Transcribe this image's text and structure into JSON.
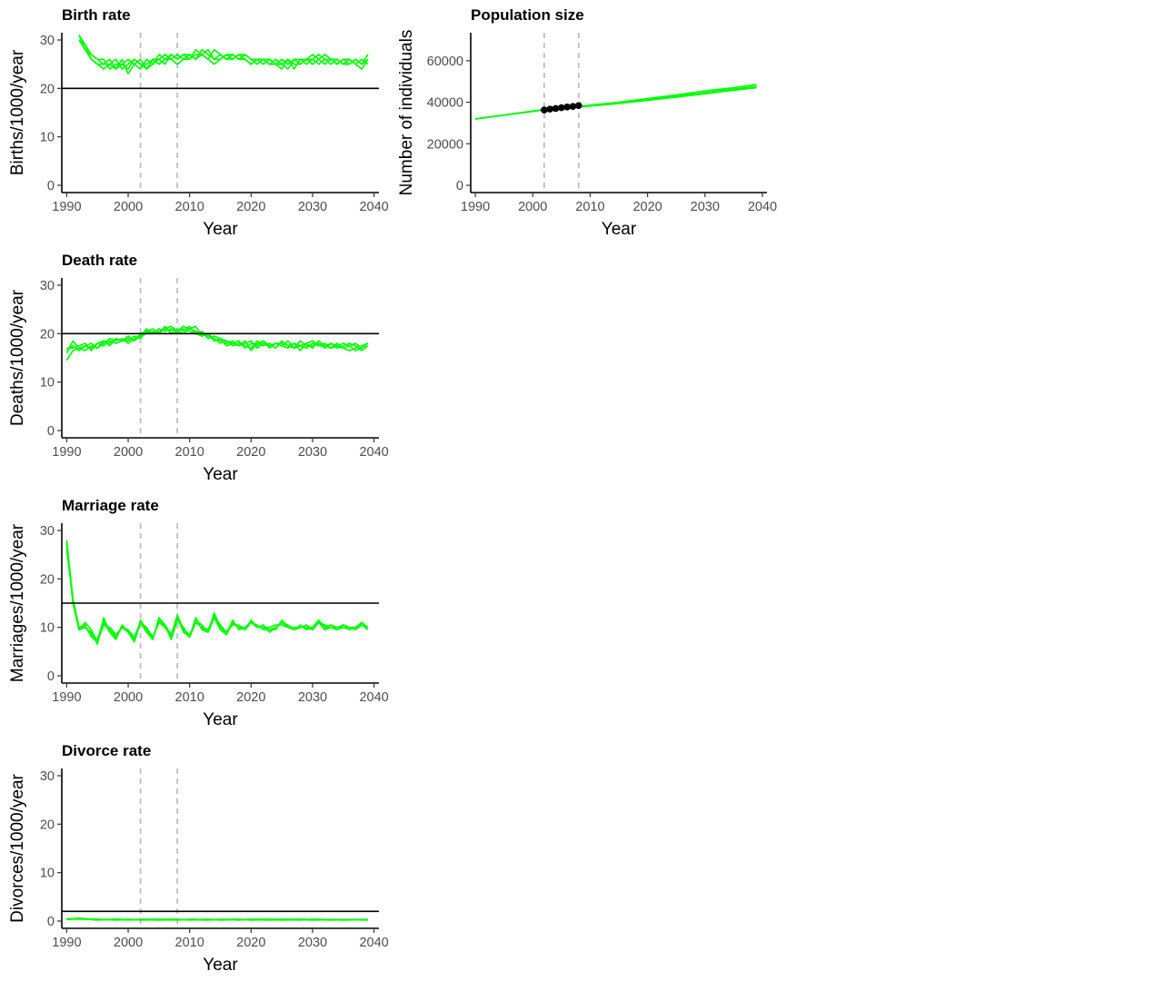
{
  "colors": {
    "series": "#00ff00",
    "reference": "#000000",
    "vline": "#bebebe",
    "points": "#000000"
  },
  "chart_data": [
    {
      "id": "birth",
      "type": "line",
      "title": "Birth rate",
      "xlabel": "Year",
      "ylabel": "Births/1000/year",
      "xlim": [
        1989.2,
        2040.8
      ],
      "ylim": [
        -1.5,
        31.5
      ],
      "xticks": [
        1990,
        2000,
        2010,
        2020,
        2030,
        2040
      ],
      "yticks": [
        0,
        10,
        20,
        30
      ],
      "hline": 20,
      "vlines": [
        2002,
        2008
      ],
      "x": [
        1992,
        1993,
        1994,
        1995,
        1996,
        1997,
        1998,
        1999,
        2000,
        2001,
        2002,
        2003,
        2004,
        2005,
        2006,
        2007,
        2008,
        2009,
        2010,
        2011,
        2012,
        2013,
        2014,
        2015,
        2016,
        2017,
        2018,
        2019,
        2020,
        2021,
        2022,
        2023,
        2024,
        2025,
        2026,
        2027,
        2028,
        2029,
        2030,
        2031,
        2032,
        2033,
        2034,
        2035,
        2036,
        2037,
        2038,
        2039
      ],
      "series": [
        {
          "values": [
            31,
            29,
            27,
            26,
            25,
            26,
            24,
            25,
            24,
            26,
            25,
            24,
            26,
            25,
            26,
            27,
            26,
            27,
            26,
            27,
            27,
            28,
            26,
            26,
            27,
            26,
            27,
            26,
            25,
            26,
            26,
            25,
            25,
            26,
            25,
            26,
            26,
            25,
            26,
            25,
            26,
            26,
            25,
            26,
            25,
            26,
            25,
            26
          ]
        },
        {
          "values": [
            31,
            28,
            27,
            26,
            26,
            24,
            25,
            25,
            26,
            25,
            24,
            26,
            25,
            27,
            26,
            26,
            27,
            26,
            27,
            26,
            28,
            27,
            26,
            27,
            26,
            27,
            26,
            27,
            26,
            25,
            26,
            26,
            25,
            24,
            26,
            25,
            25,
            26,
            26,
            27,
            26,
            25,
            26,
            25,
            26,
            25,
            26,
            25
          ]
        },
        {
          "values": [
            31,
            29,
            26,
            25,
            24,
            25,
            26,
            24,
            25,
            26,
            25,
            25,
            26,
            26,
            27,
            26,
            25,
            26,
            26,
            28,
            27,
            26,
            28,
            27,
            26,
            26,
            27,
            27,
            26,
            26,
            25,
            26,
            25,
            25,
            24,
            26,
            25,
            26,
            25,
            26,
            27,
            26,
            25,
            26,
            26,
            25,
            24,
            26
          ]
        },
        {
          "values": [
            30,
            28,
            26,
            25,
            25,
            25,
            24,
            26,
            23,
            25,
            26,
            24,
            25,
            26,
            25,
            27,
            26,
            27,
            27,
            26,
            27,
            26,
            25,
            26,
            27,
            27,
            26,
            26,
            25,
            26,
            26,
            25,
            26,
            25,
            26,
            24,
            26,
            26,
            27,
            26,
            25,
            26,
            26,
            25,
            25,
            26,
            25,
            27
          ]
        }
      ]
    },
    {
      "id": "population",
      "type": "line",
      "title": "Population size",
      "xlabel": "Year",
      "ylabel": "Number of individuals",
      "xlim": [
        1989.2,
        2040.8
      ],
      "ylim": [
        -3500,
        73500
      ],
      "xticks": [
        1990,
        2000,
        2010,
        2020,
        2030,
        2040
      ],
      "yticks": [
        0,
        20000,
        40000,
        60000
      ],
      "ytick_labels": [
        "0",
        "20000",
        "40000",
        "60000"
      ],
      "vlines": [
        2002,
        2008
      ],
      "x": [
        1990,
        2002,
        2008,
        2015,
        2020,
        2025,
        2030,
        2035,
        2039
      ],
      "series": [
        {
          "values": [
            32000,
            36500,
            38000,
            40000,
            41800,
            43500,
            45500,
            47000,
            48500
          ]
        },
        {
          "values": [
            32000,
            36300,
            37800,
            39600,
            41200,
            42900,
            44700,
            46300,
            47600
          ]
        },
        {
          "values": [
            32000,
            36400,
            37700,
            39400,
            40900,
            42500,
            44100,
            45800,
            47000
          ]
        }
      ],
      "points": {
        "x": [
          2002,
          2003,
          2004,
          2005,
          2006,
          2007,
          2008
        ],
        "y": [
          36300,
          36700,
          37000,
          37400,
          37700,
          38000,
          38400
        ]
      }
    },
    {
      "id": "death",
      "type": "line",
      "title": "Death rate",
      "xlabel": "Year",
      "ylabel": "Deaths/1000/year",
      "xlim": [
        1989.2,
        2040.8
      ],
      "ylim": [
        -1.5,
        31.5
      ],
      "xticks": [
        1990,
        2000,
        2010,
        2020,
        2030,
        2040
      ],
      "yticks": [
        0,
        10,
        20,
        30
      ],
      "hline": 20,
      "vlines": [
        2002,
        2008
      ],
      "x": [
        1990,
        1991,
        1992,
        1993,
        1994,
        1995,
        1996,
        1997,
        1998,
        1999,
        2000,
        2001,
        2002,
        2003,
        2004,
        2005,
        2006,
        2007,
        2008,
        2009,
        2010,
        2011,
        2012,
        2013,
        2014,
        2015,
        2016,
        2017,
        2018,
        2019,
        2020,
        2021,
        2022,
        2023,
        2024,
        2025,
        2026,
        2027,
        2028,
        2029,
        2030,
        2031,
        2032,
        2033,
        2034,
        2035,
        2036,
        2037,
        2038,
        2039
      ],
      "series": [
        {
          "values": [
            14.5,
            16.5,
            17,
            17.5,
            17,
            18,
            17.5,
            18.5,
            18,
            18.5,
            19,
            18.5,
            19.5,
            20,
            20.5,
            20,
            21,
            21.5,
            20.5,
            21.5,
            21,
            20.5,
            20,
            19.5,
            19,
            18.5,
            18,
            18.5,
            17.5,
            18,
            18.5,
            17,
            18,
            17.5,
            18,
            17.5,
            17,
            18,
            17.5,
            17,
            18,
            17.5,
            17.5,
            17,
            18,
            17,
            16.5,
            17,
            17.5,
            18
          ]
        },
        {
          "values": [
            16.5,
            17.5,
            16.5,
            17.5,
            18,
            17,
            18.5,
            18,
            19,
            18.5,
            18.5,
            19.5,
            19,
            20.5,
            20,
            20.5,
            21,
            20.5,
            21,
            20.5,
            21.5,
            20,
            20.5,
            19,
            19.5,
            19,
            18.5,
            17.5,
            18,
            17.5,
            17,
            18.5,
            17.5,
            18,
            17,
            18.5,
            17.5,
            18,
            16.5,
            18,
            18.5,
            17.5,
            18,
            17,
            17.5,
            18,
            17.5,
            16.5,
            17,
            18
          ]
        },
        {
          "values": [
            16,
            18.5,
            17,
            16.5,
            17.5,
            17,
            18,
            19,
            18.5,
            19,
            18,
            19,
            19.5,
            21,
            20,
            21,
            20.5,
            21,
            20.5,
            20,
            21,
            21.5,
            19.5,
            20,
            19,
            18,
            18.5,
            18,
            17.5,
            18.5,
            16.5,
            18,
            18.5,
            17.5,
            18,
            18,
            17.5,
            17,
            18.5,
            17.5,
            17.5,
            18,
            17,
            18,
            17,
            17.5,
            18,
            17.5,
            16.5,
            17.5
          ]
        },
        {
          "values": [
            17,
            17,
            17.5,
            18,
            16.5,
            18,
            18.5,
            17.5,
            19,
            18.5,
            19.5,
            18.5,
            20,
            20.5,
            21,
            20,
            21.5,
            20,
            20.5,
            21,
            20.5,
            20,
            19.5,
            20,
            18.5,
            19,
            17.5,
            18,
            18.5,
            17,
            18,
            17.5,
            18.5,
            17,
            18,
            17.5,
            18.5,
            17,
            17.5,
            18,
            17,
            18.5,
            17.5,
            18,
            17.5,
            17,
            17.5,
            18,
            17,
            18
          ]
        }
      ]
    },
    {
      "id": "marriage",
      "type": "line",
      "title": "Marriage rate",
      "xlabel": "Year",
      "ylabel": "Marriages/1000/year",
      "xlim": [
        1989.2,
        2040.8
      ],
      "ylim": [
        -1.5,
        31.5
      ],
      "xticks": [
        1990,
        2000,
        2010,
        2020,
        2030,
        2040
      ],
      "yticks": [
        0,
        10,
        20,
        30
      ],
      "hline": 15,
      "vlines": [
        2002,
        2008
      ],
      "x": [
        1990,
        1991,
        1992,
        1993,
        1994,
        1995,
        1996,
        1997,
        1998,
        1999,
        2000,
        2001,
        2002,
        2003,
        2004,
        2005,
        2006,
        2007,
        2008,
        2009,
        2010,
        2011,
        2012,
        2013,
        2014,
        2015,
        2016,
        2017,
        2018,
        2019,
        2020,
        2021,
        2022,
        2023,
        2024,
        2025,
        2026,
        2027,
        2028,
        2029,
        2030,
        2031,
        2032,
        2033,
        2034,
        2035,
        2036,
        2037,
        2038,
        2039
      ],
      "series": [
        {
          "values": [
            28,
            16,
            10,
            10.5,
            8,
            7,
            11,
            9,
            8,
            10,
            9,
            7.5,
            11,
            9,
            8,
            11,
            10,
            8,
            12,
            9,
            8,
            11,
            10,
            9,
            12,
            10,
            9,
            11,
            10,
            10,
            11,
            10,
            10,
            9.5,
            10,
            11,
            10,
            9.5,
            10,
            10,
            9.5,
            11,
            10,
            10,
            9.5,
            10,
            10,
            9.5,
            11,
            10
          ]
        },
        {
          "values": [
            27,
            15.5,
            9.5,
            10,
            9,
            6.5,
            12,
            9,
            7.5,
            10.5,
            9,
            7,
            11.5,
            9.5,
            7.5,
            12,
            10.5,
            8.5,
            12.5,
            9.5,
            8,
            11.5,
            10.5,
            9,
            13,
            10,
            8.5,
            11,
            10,
            9.5,
            11,
            10,
            10.5,
            9,
            10,
            11,
            10.5,
            9.5,
            10,
            10.5,
            9.5,
            11,
            10.5,
            10,
            9.5,
            10.5,
            10,
            9.5,
            10.5,
            9.5
          ]
        },
        {
          "values": [
            26,
            16,
            10,
            10,
            8.5,
            7.5,
            11.5,
            9.5,
            8,
            10,
            9.5,
            8,
            11,
            9,
            7.5,
            11.5,
            10,
            8,
            12,
            9.5,
            8.5,
            11,
            10,
            9.5,
            12.5,
            10.5,
            9,
            10.5,
            10.5,
            9.5,
            11.5,
            10,
            10,
            10,
            10.5,
            10.5,
            10,
            10,
            10,
            10,
            10,
            11,
            9.5,
            10,
            10,
            10.5,
            10,
            10,
            10.5,
            10
          ]
        },
        {
          "values": [
            27.5,
            15,
            9.5,
            11,
            9.5,
            7,
            10.5,
            10,
            8.5,
            10,
            9,
            7,
            11,
            10,
            8,
            11,
            10.5,
            7.5,
            11.5,
            10,
            8,
            12,
            9.5,
            9,
            12,
            9.5,
            8.5,
            11.5,
            9.5,
            10,
            11,
            10.5,
            9.5,
            9.5,
            9.5,
            11.5,
            10,
            9.5,
            10.5,
            9.5,
            10,
            11.5,
            10,
            10.5,
            10,
            10,
            9.5,
            10,
            11,
            10
          ]
        }
      ]
    },
    {
      "id": "divorce",
      "type": "line",
      "title": "Divorce rate",
      "xlabel": "Year",
      "ylabel": "Divorces/1000/year",
      "xlim": [
        1989.2,
        2040.8
      ],
      "ylim": [
        -1.5,
        31.5
      ],
      "xticks": [
        1990,
        2000,
        2010,
        2020,
        2030,
        2040
      ],
      "yticks": [
        0,
        10,
        20,
        30
      ],
      "hline": 2,
      "vlines": [
        2002,
        2008
      ],
      "x": [
        1990,
        1992,
        1995,
        1998,
        2000,
        2002,
        2005,
        2008,
        2010,
        2013,
        2015,
        2018,
        2020,
        2023,
        2025,
        2028,
        2030,
        2033,
        2035,
        2039
      ],
      "series": [
        {
          "values": [
            0.4,
            0.6,
            0.3,
            0.4,
            0.2,
            0.4,
            0.3,
            0.2,
            0.4,
            0.3,
            0.3,
            0.4,
            0.2,
            0.3,
            0.4,
            0.3,
            0.2,
            0.3,
            0.3,
            0.3
          ]
        },
        {
          "values": [
            0.5,
            0.4,
            0.4,
            0.2,
            0.4,
            0.2,
            0.3,
            0.4,
            0.2,
            0.4,
            0.2,
            0.3,
            0.3,
            0.2,
            0.3,
            0.4,
            0.3,
            0.3,
            0.2,
            0.3
          ]
        },
        {
          "values": [
            0.3,
            0.5,
            0.3,
            0.3,
            0.3,
            0.3,
            0.2,
            0.3,
            0.3,
            0.2,
            0.4,
            0.2,
            0.4,
            0.3,
            0.2,
            0.3,
            0.3,
            0.2,
            0.3,
            0.2
          ]
        },
        {
          "values": [
            0.4,
            0.5,
            0.2,
            0.4,
            0.3,
            0.3,
            0.4,
            0.3,
            0.3,
            0.3,
            0.3,
            0.3,
            0.3,
            0.4,
            0.3,
            0.2,
            0.4,
            0.3,
            0.3,
            0.3
          ]
        }
      ]
    }
  ]
}
